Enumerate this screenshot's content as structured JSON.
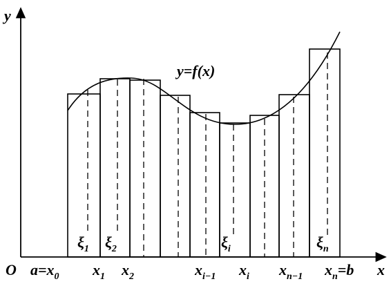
{
  "axes": {
    "y": "y",
    "x": "x",
    "origin": "O"
  },
  "curve_label": "y=f(x)",
  "x_labels": [
    {
      "before": "a=",
      "main": "x",
      "sub": "0"
    },
    {
      "main": "x",
      "sub": "1"
    },
    {
      "main": "x",
      "sub": "2"
    },
    {
      "main": "x",
      "sub": "i−1"
    },
    {
      "main": "x",
      "sub": "i"
    },
    {
      "main": "x",
      "sub": "n−1"
    },
    {
      "main": "x",
      "sub": "n",
      "after": "=b"
    }
  ],
  "xi_labels": [
    {
      "main": "ξ",
      "sub": "1"
    },
    {
      "main": "ξ",
      "sub": "2"
    },
    {
      "main": "ξ",
      "sub": "i"
    },
    {
      "main": "ξ",
      "sub": "n"
    }
  ]
}
